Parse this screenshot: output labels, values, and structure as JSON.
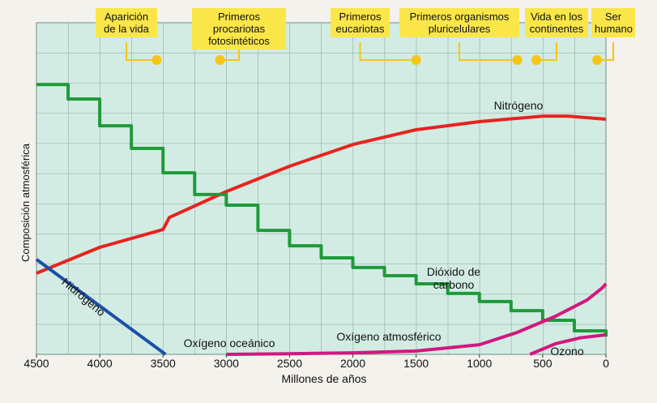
{
  "chart_data": {
    "type": "line",
    "xlabel": "Millones de años",
    "ylabel": "Composición atmosférica",
    "xlim": [
      4500,
      0
    ],
    "xticks": [
      4500,
      4000,
      3500,
      3000,
      2500,
      2000,
      1500,
      1000,
      500,
      0
    ],
    "ylim": [
      0,
      11
    ],
    "series": [
      {
        "name": "Nitrógeno",
        "color": "#e8231e",
        "x": [
          4500,
          4000,
          3500,
          3450,
          3000,
          2500,
          2000,
          1500,
          1000,
          500,
          300,
          0
        ],
        "values": [
          2.69,
          3.55,
          4.14,
          4.54,
          5.4,
          6.24,
          6.96,
          7.45,
          7.72,
          7.9,
          7.9,
          7.8
        ]
      },
      {
        "name": "Dióxido de\ncarbono",
        "color": "#1f9a3a",
        "stepped": true,
        "x": [
          4500,
          4250,
          4000,
          3750,
          3500,
          3250,
          3000,
          2750,
          2500,
          2250,
          2000,
          1750,
          1500,
          1250,
          1000,
          750,
          500,
          250,
          0
        ],
        "values": [
          8.95,
          8.47,
          7.58,
          6.83,
          6.02,
          5.3,
          4.95,
          4.11,
          3.6,
          3.2,
          2.88,
          2.61,
          2.34,
          2.02,
          1.75,
          1.45,
          1.13,
          0.78,
          0.59
        ]
      },
      {
        "name": "Hidrógeno",
        "color": "#1d4fa8",
        "x": [
          4500,
          3480
        ],
        "values": [
          3.15,
          0
        ]
      },
      {
        "name": "Oxígeno oceánico",
        "color": "#d4167f",
        "x": [
          3000,
          2500,
          2000,
          1500
        ],
        "values": [
          0,
          0.02,
          0.05,
          0.11
        ]
      },
      {
        "name": "Oxígeno atmosférico",
        "color": "#d4167f",
        "x": [
          1500,
          1000,
          700,
          400,
          150,
          30,
          0
        ],
        "values": [
          0.11,
          0.32,
          0.73,
          1.26,
          1.8,
          2.2,
          2.34
        ]
      },
      {
        "name": "Ozono",
        "color": "#d4167f",
        "x": [
          600,
          400,
          200,
          0
        ],
        "values": [
          0,
          0.35,
          0.55,
          0.65
        ]
      }
    ],
    "annotations": [
      {
        "text": "Aparición\nde la vida",
        "x": 3550
      },
      {
        "text": "Primeros procariotas\nfotosintéticos",
        "x": 3050
      },
      {
        "text": "Primeros\neucariotas",
        "x": 1500
      },
      {
        "text": "Primeros organismos\npluricelulares",
        "x": 700
      },
      {
        "text": "Vida en los\ncontinentes",
        "x": 550
      },
      {
        "text": "Ser\nhumano",
        "x": 70
      }
    ],
    "annotation_color": "#f5c518"
  }
}
